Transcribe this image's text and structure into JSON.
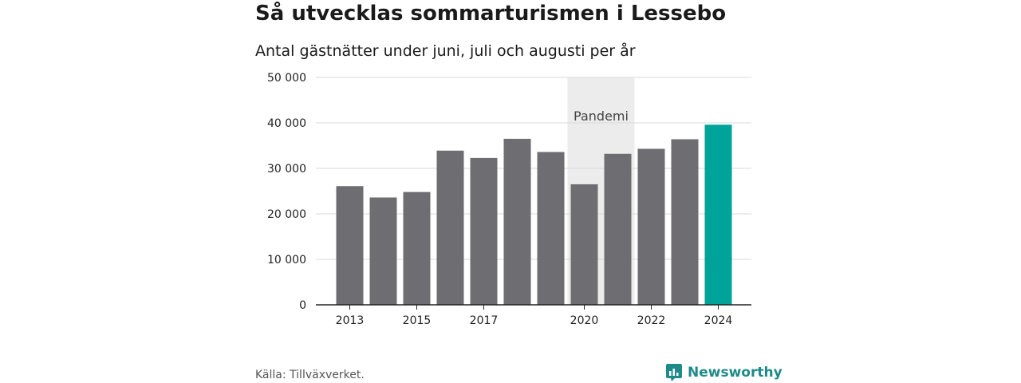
{
  "title": "Så utvecklas sommarturismen i Lessebo",
  "subtitle": "Antal gästnätter under juni, juli och augusti per år",
  "source": "Källa: Tillväxverket.",
  "logo_text": "Newsworthy",
  "colors": {
    "bar": "#6e6d72",
    "highlight": "#00a39a",
    "pandemic_band": "#ececec",
    "grid": "#d9d9d9",
    "axis": "#222222",
    "logo": "#1f8a8a"
  },
  "chart_data": {
    "type": "bar",
    "title": "Så utvecklas sommarturismen i Lessebo",
    "subtitle": "Antal gästnätter under juni, juli och augusti per år",
    "xlabel": "",
    "ylabel": "",
    "categories": [
      "2013",
      "2014",
      "2015",
      "2016",
      "2017",
      "2018",
      "2019",
      "2020",
      "2021",
      "2022",
      "2023",
      "2024"
    ],
    "values": [
      26100,
      23600,
      24800,
      33900,
      32300,
      36500,
      33600,
      26500,
      33200,
      34300,
      36400,
      39600
    ],
    "highlight_category": "2024",
    "x_tick_labels": [
      "2013",
      "2015",
      "2017",
      "2020",
      "2022",
      "2024"
    ],
    "ylim": [
      0,
      50000
    ],
    "y_ticks": [
      0,
      10000,
      20000,
      30000,
      40000,
      50000
    ],
    "y_tick_labels": [
      "0",
      "10 000",
      "20 000",
      "30 000",
      "40 000",
      "50 000"
    ],
    "grid": true,
    "annotations": [
      {
        "label": "Pandemi",
        "from": "2020",
        "to": "2021"
      }
    ]
  }
}
